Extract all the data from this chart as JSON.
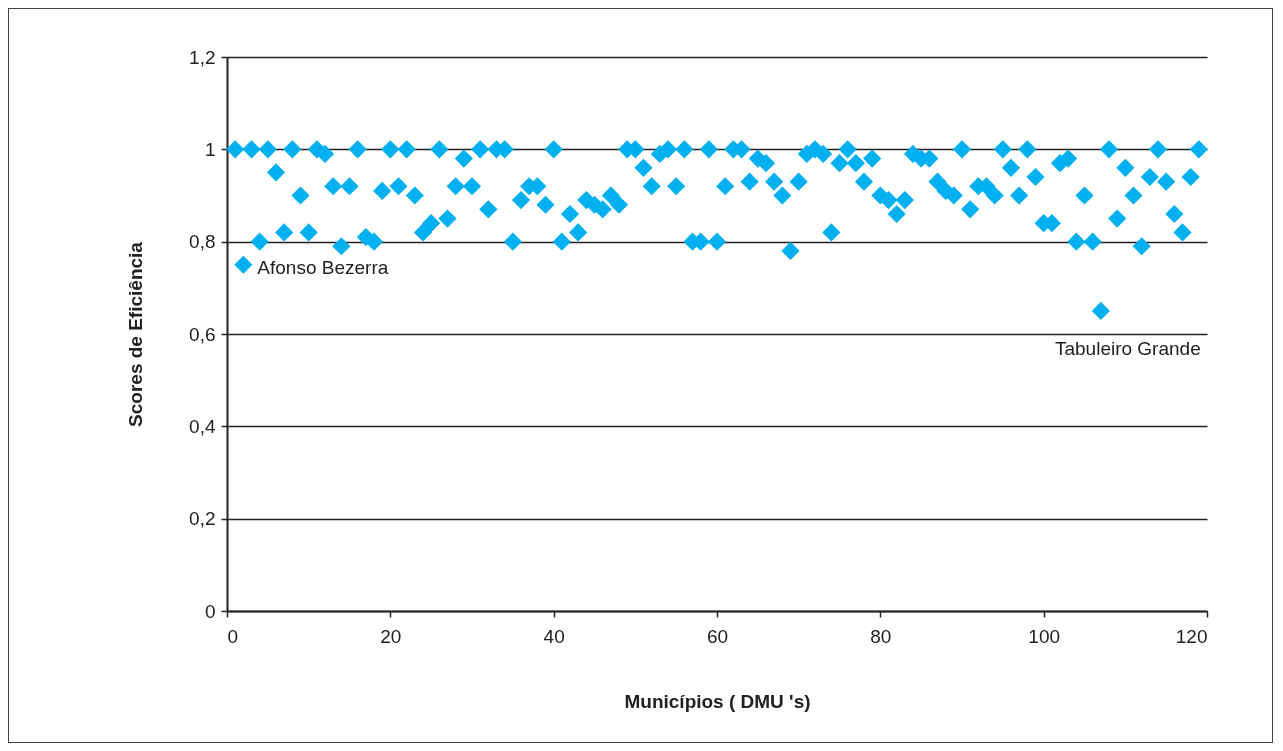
{
  "chart_data": {
    "type": "scatter",
    "xlabel": "Municípios ( DMU 's)",
    "ylabel": "Scores de Eficiência",
    "x": [
      1,
      2,
      3,
      4,
      5,
      6,
      7,
      8,
      9,
      10,
      11,
      12,
      13,
      14,
      15,
      16,
      17,
      18,
      19,
      20,
      21,
      22,
      23,
      24,
      25,
      26,
      27,
      28,
      29,
      30,
      31,
      32,
      33,
      34,
      35,
      36,
      37,
      38,
      39,
      40,
      41,
      42,
      43,
      44,
      45,
      46,
      47,
      48,
      49,
      50,
      51,
      52,
      53,
      54,
      55,
      56,
      57,
      58,
      59,
      60,
      61,
      62,
      63,
      64,
      65,
      66,
      67,
      68,
      69,
      70,
      71,
      72,
      73,
      74,
      75,
      76,
      77,
      78,
      79,
      80,
      81,
      82,
      83,
      84,
      85,
      86,
      87,
      88,
      89,
      90,
      91,
      92,
      93,
      94,
      95,
      96,
      97,
      98,
      99,
      100,
      101,
      102,
      103,
      104,
      105,
      106,
      107,
      108,
      109,
      110,
      111,
      112,
      113,
      114,
      115,
      116,
      117,
      118,
      119
    ],
    "series": [
      {
        "color": "#00b0f0",
        "values": [
          1.0,
          0.75,
          1.0,
          0.8,
          1.0,
          0.95,
          0.82,
          1.0,
          0.9,
          0.82,
          1.0,
          0.99,
          0.92,
          0.79,
          0.92,
          1.0,
          0.81,
          0.8,
          0.91,
          1.0,
          0.92,
          1.0,
          0.9,
          0.82,
          0.84,
          1.0,
          0.85,
          0.92,
          0.98,
          0.92,
          1.0,
          0.87,
          1.0,
          1.0,
          0.8,
          0.89,
          0.92,
          0.92,
          0.88,
          1.0,
          0.8,
          0.86,
          0.82,
          0.89,
          0.88,
          0.87,
          0.9,
          0.88,
          1.0,
          1.0,
          0.96,
          0.92,
          0.99,
          1.0,
          0.92,
          1.0,
          0.8,
          0.8,
          1.0,
          0.8,
          0.92,
          1.0,
          1.0,
          0.93,
          0.98,
          0.97,
          0.93,
          0.9,
          0.78,
          0.93,
          0.99,
          1.0,
          0.99,
          0.82,
          0.97,
          1.0,
          0.97,
          0.93,
          0.98,
          0.9,
          0.89,
          0.86,
          0.89,
          0.99,
          0.98,
          0.98,
          0.93,
          0.91,
          0.9,
          1.0,
          0.87,
          0.92,
          0.92,
          0.9,
          1.0,
          0.96,
          0.9,
          1.0,
          0.94,
          0.84,
          0.84,
          0.97,
          0.98,
          0.8,
          0.9,
          0.8,
          0.65,
          1.0,
          0.85,
          0.96,
          0.9,
          0.79,
          0.94,
          1.0,
          0.93,
          0.86,
          0.82,
          0.94,
          1.0
        ]
      }
    ],
    "xlim": [
      0,
      120
    ],
    "xticks": [
      0,
      20,
      40,
      60,
      80,
      100,
      120
    ],
    "ylim": [
      0,
      1.2
    ],
    "yticks": [
      0,
      {
        "value": 0.2,
        "label": "0,2"
      },
      {
        "value": 0.4,
        "label": "0,4"
      },
      {
        "value": 0.6,
        "label": "0,6"
      },
      {
        "value": 0.8,
        "label": "0,8"
      },
      1,
      {
        "value": 1.2,
        "label": "1,2"
      }
    ],
    "grid": "y",
    "legend": false,
    "marker": "diamond",
    "annotations": [
      {
        "text": "Afonso Bezerra",
        "x": 2,
        "y": 0.75
      },
      {
        "text": "Tabuleiro Grande",
        "x": 107,
        "y": 0.65
      }
    ]
  }
}
